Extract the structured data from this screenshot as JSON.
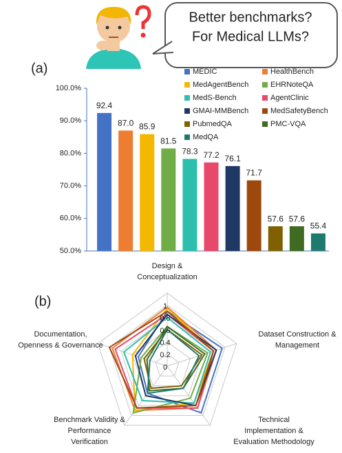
{
  "bubble": [
    "Better benchmarks?",
    "For Medical LLMs?"
  ],
  "panel_labels": [
    "(a)",
    "(b)"
  ],
  "chart_data": [
    {
      "type": "bar",
      "categories": [
        "MEDIC",
        "HealthBench",
        "MedAgentBench",
        "EHRNoteQA",
        "MedS-Bench",
        "AgentClinic",
        "GMAI-MMBench",
        "MedSafetyBench",
        "PubmedQA",
        "PMC-VQA",
        "MedQA"
      ],
      "values": [
        92.4,
        87.0,
        85.9,
        81.5,
        78.3,
        77.2,
        76.1,
        71.7,
        57.6,
        57.6,
        55.4
      ],
      "value_labels": [
        "92.4",
        "87.0",
        "85.9",
        "81.5",
        "78.3",
        "77.2",
        "76.1",
        "71.7",
        "57.6",
        "57.6",
        "55.4"
      ],
      "colors": [
        "#4472c4",
        "#ed7d31",
        "#f5b800",
        "#70ad47",
        "#2dbfae",
        "#e8496a",
        "#203864",
        "#9e480e",
        "#806000",
        "#3f6b22",
        "#1f7a6e"
      ],
      "ylim": [
        50,
        100
      ],
      "yticks": [
        {
          "value": 50,
          "label": "50.0%"
        },
        {
          "value": 60,
          "label": "60.0%"
        },
        {
          "value": 70,
          "label": "70.0%"
        },
        {
          "value": 80,
          "label": "80.0%"
        },
        {
          "value": 90,
          "label": "90.0%"
        },
        {
          "value": 100,
          "label": "100.0%"
        }
      ],
      "grid": false,
      "legend": "upper right"
    },
    {
      "type": "radar",
      "axes": [
        [
          "Design &",
          "Conceptualization"
        ],
        [
          "Dataset Construction &",
          "Management"
        ],
        [
          "Technical",
          "Implementation &",
          "Evaluation Methodology"
        ],
        [
          "Benchmark Validity &",
          "Performance",
          "Verification"
        ],
        [
          "Documentation,",
          "Openness & Governance"
        ]
      ],
      "rlim": [
        0,
        1.2
      ],
      "rticks": [
        0,
        0.2,
        0.4,
        0.6,
        0.8,
        1
      ],
      "series": [
        {
          "color": "#4472c4",
          "values": [
            0.9,
            0.95,
            0.95,
            0.55,
            0.5
          ]
        },
        {
          "color": "#ed7d31",
          "values": [
            0.97,
            0.85,
            0.85,
            0.9,
            0.95
          ]
        },
        {
          "color": "#f5b800",
          "values": [
            0.95,
            0.8,
            0.75,
            0.9,
            0.6
          ]
        },
        {
          "color": "#70ad47",
          "values": [
            0.65,
            0.7,
            0.65,
            0.95,
            0.45
          ]
        },
        {
          "color": "#2dbfae",
          "values": [
            0.8,
            0.75,
            0.75,
            0.7,
            0.75
          ]
        },
        {
          "color": "#e8496a",
          "values": [
            0.85,
            0.8,
            0.85,
            0.85,
            0.9
          ]
        },
        {
          "color": "#203864",
          "values": [
            0.85,
            0.85,
            0.8,
            0.6,
            0.55
          ]
        },
        {
          "color": "#9e480e",
          "values": [
            0.9,
            0.8,
            0.8,
            0.85,
            1.0
          ]
        },
        {
          "color": "#806000",
          "values": [
            0.6,
            0.6,
            0.4,
            0.45,
            0.4
          ]
        },
        {
          "color": "#3f6b22",
          "values": [
            0.65,
            0.65,
            0.45,
            0.5,
            0.35
          ]
        },
        {
          "color": "#1f7a6e",
          "values": [
            0.6,
            0.55,
            0.45,
            0.55,
            0.3
          ]
        }
      ]
    }
  ]
}
